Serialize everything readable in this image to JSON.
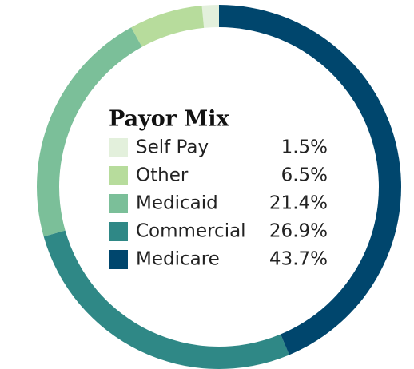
{
  "chart_data": {
    "type": "donut",
    "title": "Payor Mix",
    "categories": [
      "Self Pay",
      "Other",
      "Medicaid",
      "Commercial",
      "Medicare"
    ],
    "values": [
      1.5,
      6.5,
      21.4,
      26.9,
      43.7
    ],
    "value_labels": [
      "1.5%",
      "6.5%",
      "21.4%",
      "26.9%",
      "43.7%"
    ],
    "colors": [
      "#e3f0dc",
      "#b7dc9c",
      "#7bbf99",
      "#2f8886",
      "#00466d"
    ]
  }
}
